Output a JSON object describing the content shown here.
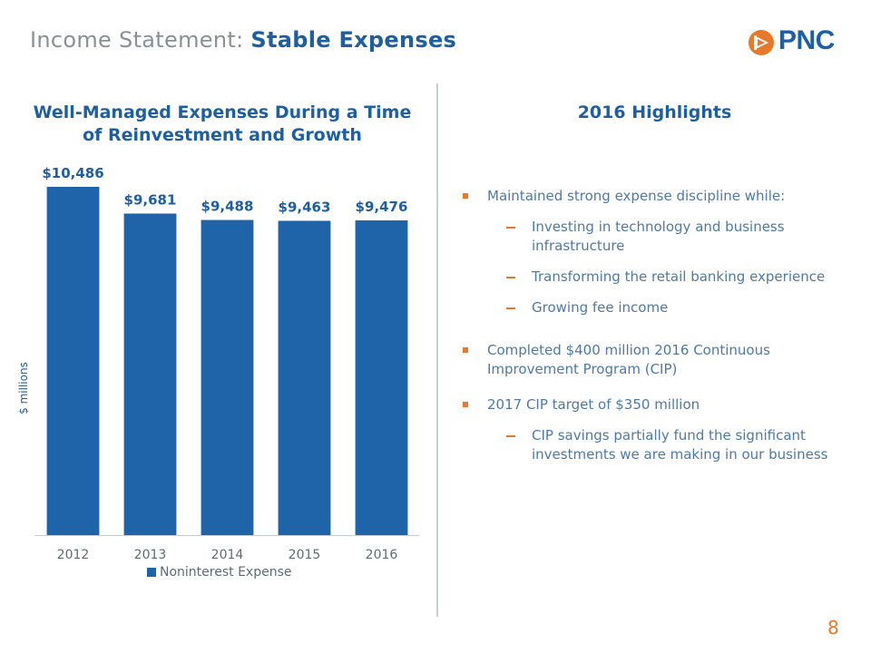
{
  "slide": {
    "title_prefix": "Income Statement:",
    "title_emphasis": "Stable Expenses",
    "page_number": "8"
  },
  "logo": {
    "text": "PNC"
  },
  "chart_data": {
    "type": "bar",
    "title": "Well-Managed Expenses During a Time of Reinvestment and Growth",
    "categories": [
      "2012",
      "2013",
      "2014",
      "2015",
      "2016"
    ],
    "series": [
      {
        "name": "Noninterest Expense",
        "values": [
          10486,
          9681,
          9488,
          9463,
          9476
        ]
      }
    ],
    "data_labels": [
      "$10,486",
      "$9,681",
      "$9,488",
      "$9,463",
      "$9,476"
    ],
    "xlabel": "",
    "ylabel": "$ millions",
    "ylim": [
      0,
      10486
    ],
    "grid": false,
    "legend": "bottom",
    "color": "#1f64a8"
  },
  "highlights": {
    "title": "2016 Highlights",
    "items": [
      {
        "text": "Maintained strong expense discipline while:",
        "subitems": [
          "Investing in technology and business infrastructure",
          "Transforming the retail banking experience",
          "Growing fee income"
        ]
      },
      {
        "text": "Completed $400 million 2016 Continuous Improvement Program (CIP)",
        "subitems": []
      },
      {
        "text": "2017 CIP target of $350 million",
        "subitems": [
          "CIP savings partially fund the significant investments we are making in our business"
        ]
      }
    ]
  },
  "colors": {
    "brand_blue": "#1e5fa3",
    "bar_blue": "#1f64a8",
    "accent_orange": "#e8782a",
    "title_gray": "#8a9096"
  }
}
